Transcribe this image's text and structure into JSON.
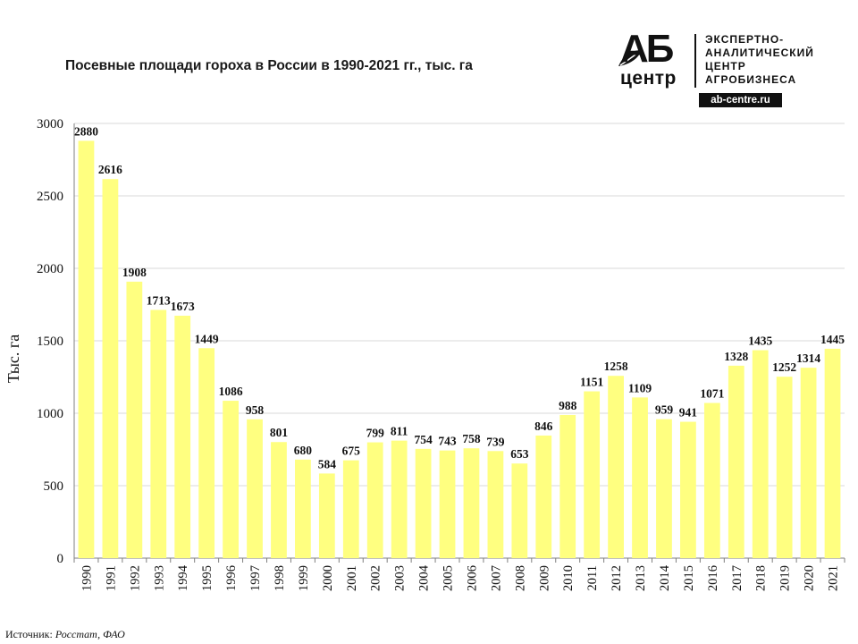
{
  "title": "Посевные площади гороха в России в 1990-2021 гг., тыс. га",
  "logo": {
    "mark": "АБ",
    "center": "центр",
    "text_lines": [
      "ЭКСПЕРТНО-",
      "АНАЛИТИЧЕСКИЙ",
      "ЦЕНТР",
      "АГРОБИЗНЕСА"
    ],
    "url": "ab-centre.ru"
  },
  "source": {
    "label": "Источник:",
    "value": "Росстат, ФАО"
  },
  "colors": {
    "bar": "#FFFF80",
    "grid": "#d9d9d9",
    "axis": "#7f7f7f",
    "text": "#111111"
  },
  "chart_data": {
    "type": "bar",
    "title": "Посевные площади гороха в России в 1990-2021 гг., тыс. га",
    "ylabel": "Тыс. га",
    "xlabel": "",
    "ylim": [
      0,
      3000
    ],
    "yticks": [
      0,
      500,
      1000,
      1500,
      2000,
      2500,
      3000
    ],
    "grid": true,
    "legend": "none",
    "categories": [
      "1990",
      "1991",
      "1992",
      "1993",
      "1994",
      "1995",
      "1996",
      "1997",
      "1998",
      "1999",
      "2000",
      "2001",
      "2002",
      "2003",
      "2004",
      "2005",
      "2006",
      "2007",
      "2008",
      "2009",
      "2010",
      "2011",
      "2012",
      "2013",
      "2014",
      "2015",
      "2016",
      "2017",
      "2018",
      "2019",
      "2020",
      "2021"
    ],
    "values": [
      2880,
      2616,
      1908,
      1713,
      1673,
      1449,
      1086,
      958,
      801,
      680,
      584,
      675,
      799,
      811,
      754,
      743,
      758,
      739,
      653,
      846,
      988,
      1151,
      1258,
      1109,
      959,
      941,
      1071,
      1328,
      1435,
      1252,
      1314,
      1445
    ]
  }
}
